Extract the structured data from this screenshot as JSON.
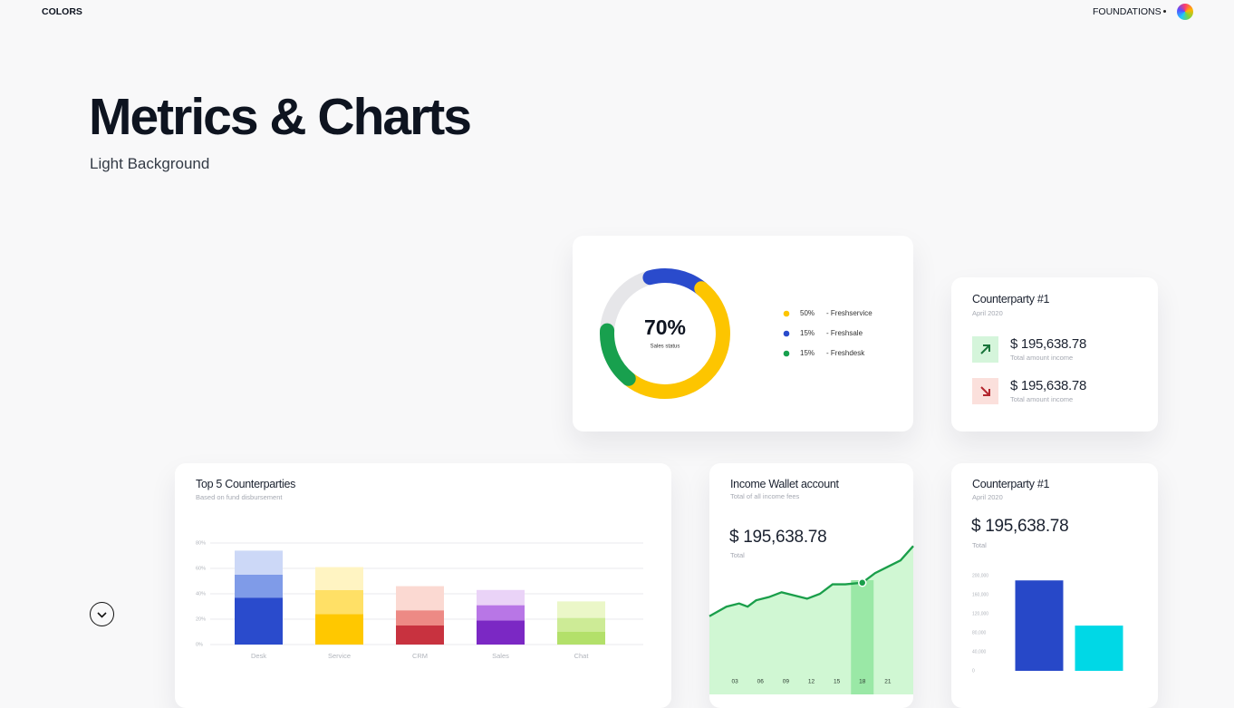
{
  "header": {
    "left": "COLORS",
    "right": "FOUNDATIONS"
  },
  "hero": {
    "title": "Metrics & Charts",
    "subtitle": "Light Background"
  },
  "cards": [
    {
      "title": "Counterparty #1",
      "date": "April 2020",
      "items": [
        {
          "amount": "$ 195,638.78",
          "label": "Total amount income"
        },
        {
          "amount": "$ 195,638.78",
          "label": "Total amount income"
        }
      ]
    }
  ],
  "chart_data": [
    {
      "type": "donut",
      "center_label": "70%",
      "center_sublabel": "Sales status",
      "categories": [
        "- Freshservice",
        "- Freshsale",
        "- Freshdesk"
      ],
      "values": [
        50,
        15,
        15
      ],
      "value_labels": [
        "50%",
        "15%",
        "15%"
      ],
      "colors": [
        "#fdc500",
        "#2a4bcc",
        "#18a04e"
      ],
      "track_color": "#e6e6e9"
    },
    {
      "type": "stacked_bar",
      "title": "Top 5 Counterparties",
      "subtitle": "Based on fund disbursement",
      "categories": [
        "Desk",
        "Service",
        "CRM",
        "Sales",
        "Chat"
      ],
      "series": [
        {
          "values": [
            37,
            24,
            15,
            19,
            10
          ],
          "colors": [
            "#2a4bcc",
            "#ffc800",
            "#c8323f",
            "#7b28c4",
            "#b3e06a"
          ]
        },
        {
          "values": [
            18,
            19,
            12,
            12,
            11
          ],
          "colors": [
            "#7f9be8",
            "#ffe066",
            "#ed8a85",
            "#b876e6",
            "#cdeb96"
          ]
        },
        {
          "values": [
            19,
            18,
            19,
            12,
            13
          ],
          "colors": [
            "#ccd8f7",
            "#fff4c2",
            "#fbd9d2",
            "#ead3f7",
            "#ebf7c8"
          ]
        }
      ],
      "ylim": [
        0,
        80
      ],
      "yticks": [
        {
          "value": 0,
          "label": "0%"
        },
        {
          "value": 20,
          "label": "20%"
        },
        {
          "value": 40,
          "label": "40%"
        },
        {
          "value": 60,
          "label": "60%"
        },
        {
          "value": 80,
          "label": "80%"
        }
      ],
      "grid": true
    },
    {
      "type": "area",
      "title": "Income Wallet account",
      "subtitle": "Total of all income fees",
      "amount": "$ 195,638.78",
      "amount_label": "Total",
      "x": [
        0,
        2,
        3.5,
        4.5,
        5.5,
        7,
        8.5,
        10,
        11.5,
        13,
        14.5,
        16,
        18,
        19.5,
        21,
        22.5,
        24
      ],
      "series": [
        {
          "color": "#1a9e4a",
          "values": [
            49,
            55,
            57,
            55,
            59,
            61,
            64,
            62,
            60,
            63,
            69,
            69,
            70,
            76,
            80,
            84,
            93
          ]
        }
      ],
      "fill": "#d0f7d3",
      "highlight_x": 18,
      "highlight_color": "#9ae8a6",
      "xlim": [
        0,
        24
      ],
      "ylim": [
        0,
        100
      ],
      "xticks": [
        {
          "value": 3,
          "label": "03"
        },
        {
          "value": 6,
          "label": "06"
        },
        {
          "value": 9,
          "label": "09"
        },
        12,
        15,
        18,
        21
      ]
    },
    {
      "type": "bar",
      "title": "Counterparty #1",
      "subtitle": "April 2020",
      "amount": "$ 195,638.78",
      "amount_label": "Total",
      "categories": [
        null,
        null
      ],
      "values": [
        190000,
        95000
      ],
      "colors": [
        "#2748c8",
        "#00d8e6"
      ],
      "ylim": [
        0,
        200000
      ],
      "yticks": [
        0,
        {
          "value": 40000,
          "label": "40,000"
        },
        {
          "value": 80000,
          "label": "80,000"
        },
        {
          "value": 120000,
          "label": "120,000"
        },
        {
          "value": 160000,
          "label": "160,000"
        },
        {
          "value": 200000,
          "label": "200,000"
        }
      ]
    }
  ]
}
